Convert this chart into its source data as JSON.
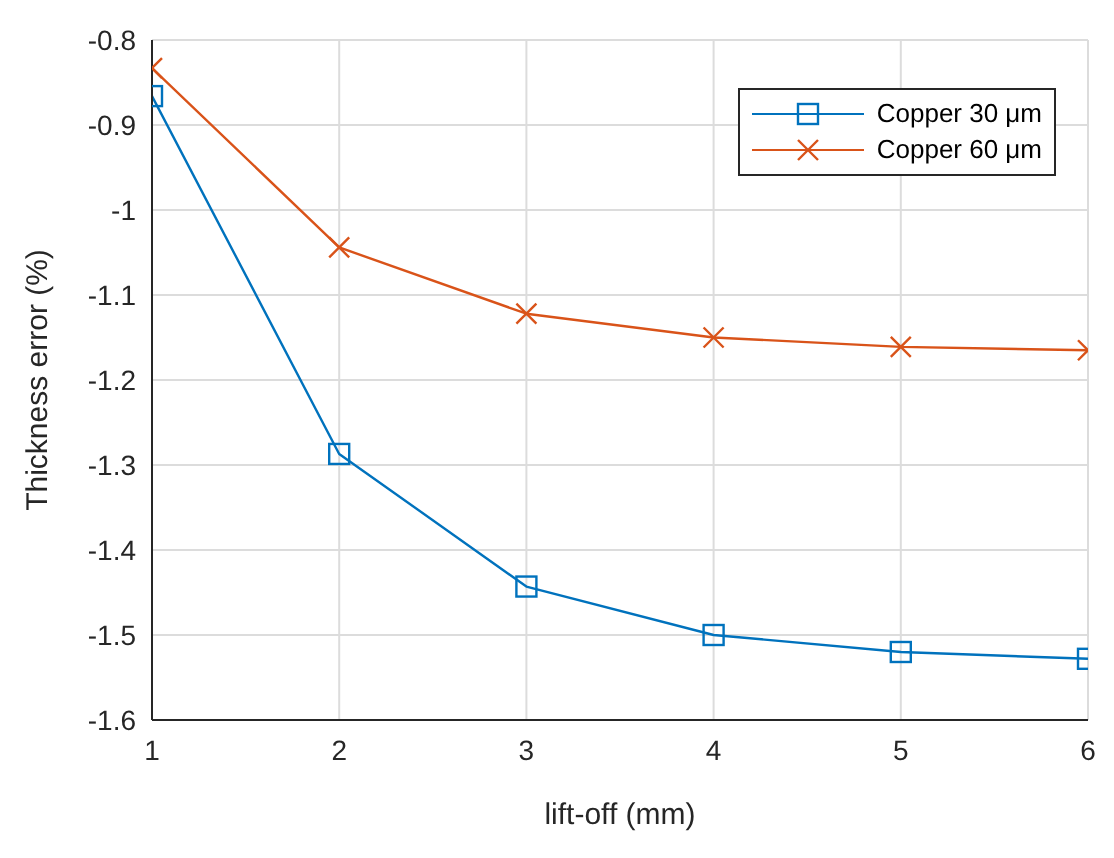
{
  "chart_data": {
    "type": "line",
    "xlabel": "lift-off (mm)",
    "ylabel": "Thickness error (%)",
    "x": [
      1,
      2,
      3,
      4,
      5,
      6
    ],
    "series": [
      {
        "name": "Copper 30 μm",
        "color": "#0072bd",
        "marker": "square",
        "values": [
          -0.866,
          -1.287,
          -1.443,
          -1.5,
          -1.52,
          -1.528
        ]
      },
      {
        "name": "Copper 60 μm",
        "color": "#d95319",
        "marker": "cross",
        "values": [
          -0.833,
          -1.044,
          -1.122,
          -1.15,
          -1.161,
          -1.165
        ]
      }
    ],
    "xlim": [
      1,
      6
    ],
    "xticks": [
      1,
      2,
      3,
      4,
      5,
      6
    ],
    "ylim": [
      -1.6,
      -0.8
    ],
    "yticks": [
      -1.6,
      -1.5,
      -1.4,
      -1.3,
      -1.2,
      -1.1,
      -1,
      -0.9,
      -0.8
    ],
    "grid": true,
    "legend": "top right"
  }
}
